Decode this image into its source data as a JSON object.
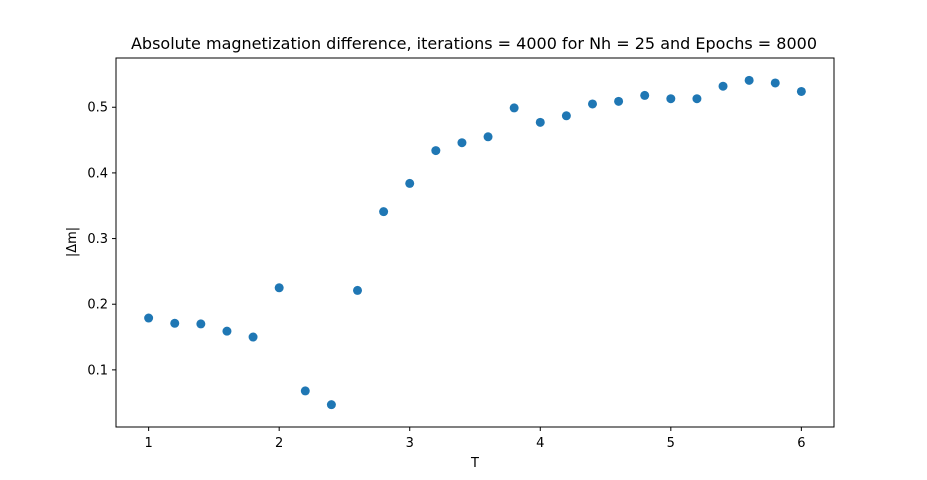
{
  "chart_data": {
    "type": "scatter",
    "title": "Absolute magnetization difference, iterations = 4000 for Nh = 25 and Epochs = 8000",
    "xlabel": "T",
    "ylabel": "|Δm|",
    "xlim": [
      0.75,
      6.25
    ],
    "ylim": [
      0.013,
      0.575
    ],
    "xticks": [
      1,
      2,
      3,
      4,
      5,
      6
    ],
    "yticks": [
      0.1,
      0.2,
      0.3,
      0.4,
      0.5
    ],
    "xtick_labels": [
      "1",
      "2",
      "3",
      "4",
      "5",
      "6"
    ],
    "ytick_labels": [
      "0.1",
      "0.2",
      "0.3",
      "0.4",
      "0.5"
    ],
    "grid": false,
    "marker_color": "#1f77b4",
    "series": [
      {
        "x": [
          1.0,
          1.2,
          1.4,
          1.6,
          1.8,
          2.0,
          2.2,
          2.4,
          2.6,
          2.8,
          3.0,
          3.2,
          3.4,
          3.6,
          3.8,
          4.0,
          4.2,
          4.4,
          4.6,
          4.8,
          5.0,
          5.2,
          5.4,
          5.6,
          5.8,
          6.0
        ],
        "y": [
          0.179,
          0.171,
          0.17,
          0.159,
          0.15,
          0.225,
          0.068,
          0.047,
          0.221,
          0.341,
          0.384,
          0.434,
          0.446,
          0.455,
          0.499,
          0.477,
          0.487,
          0.505,
          0.509,
          0.518,
          0.513,
          0.513,
          0.532,
          0.541,
          0.537,
          0.524
        ]
      }
    ]
  }
}
